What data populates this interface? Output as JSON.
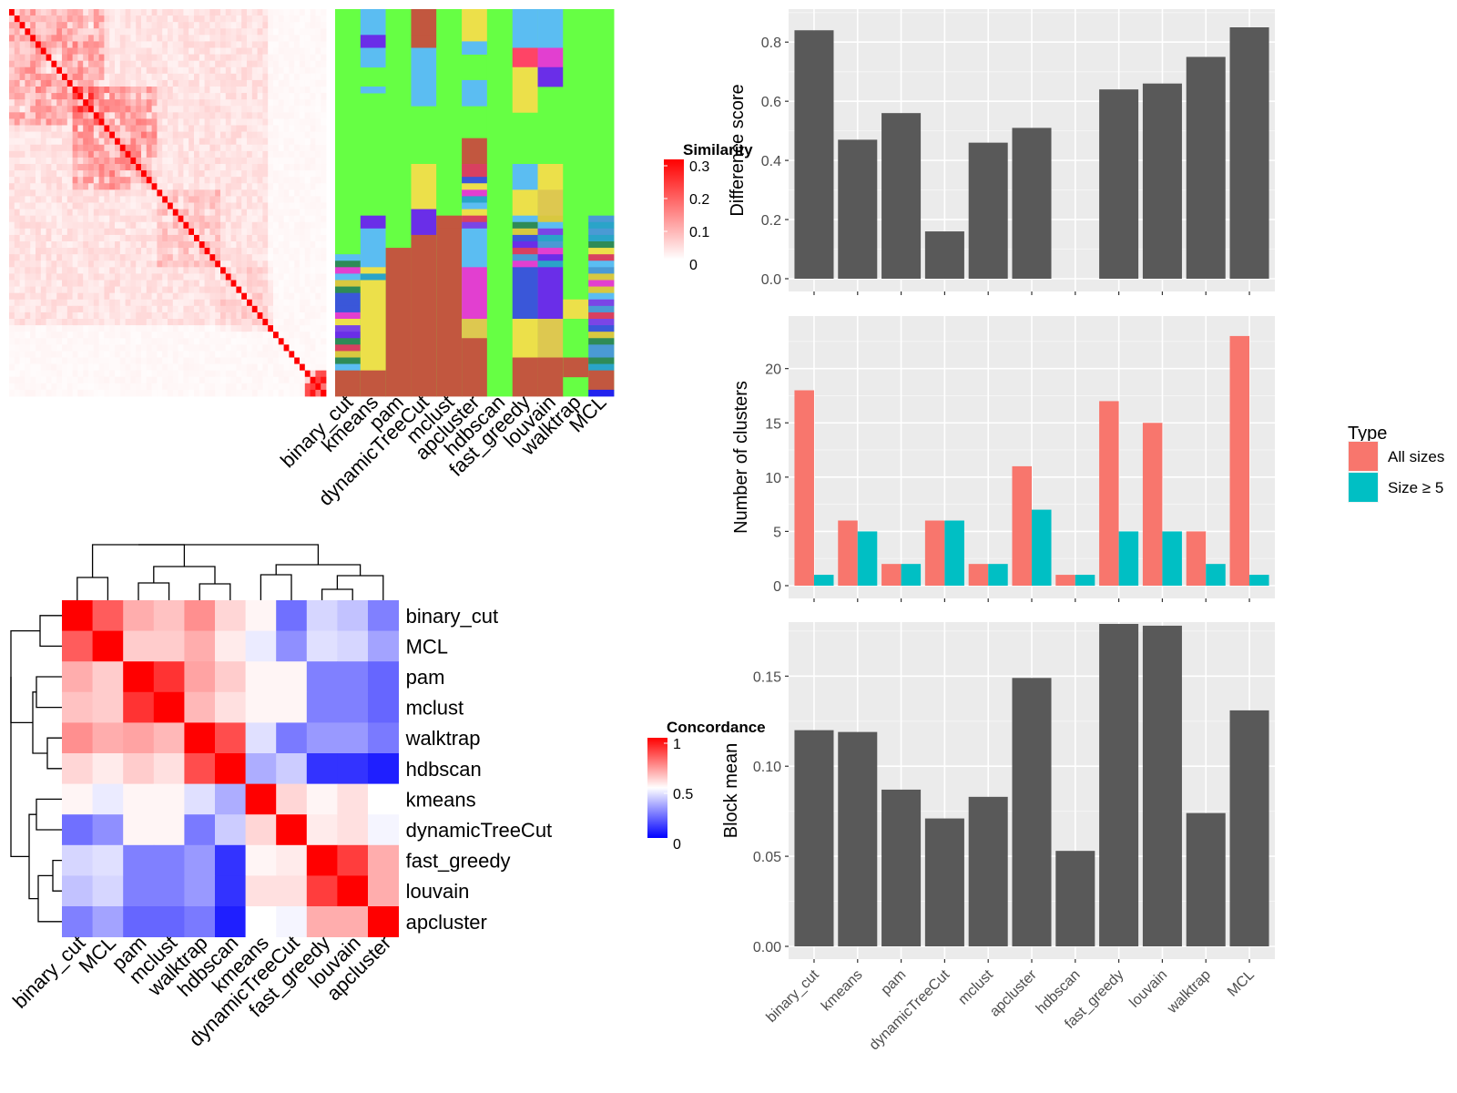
{
  "chart_data": [
    {
      "type": "heatmap",
      "id": "similarity-heatmap",
      "legend_title": "Similarity",
      "legend_ticks": [
        "0.3",
        "0.2",
        "0.1",
        "0"
      ],
      "colors": {
        "low": "#ffffff",
        "high": "#ff0000"
      }
    },
    {
      "type": "heatmap",
      "id": "cluster-membership",
      "columns": [
        "binary_cut",
        "kmeans",
        "pam",
        "dynamicTreeCut",
        "mclust",
        "apcluster",
        "hdbscan",
        "fast_greedy",
        "louvain",
        "walktrap",
        "MCL"
      ]
    },
    {
      "type": "heatmap",
      "id": "concordance-heatmap",
      "legend_title": "Concordance",
      "legend_ticks": [
        "1",
        "0.5",
        "0"
      ],
      "colors": {
        "low": "#0000ff",
        "mid": "#ffffff",
        "high": "#ff0000"
      },
      "rows": [
        "binary_cut",
        "MCL",
        "pam",
        "mclust",
        "walktrap",
        "hdbscan",
        "kmeans",
        "dynamicTreeCut",
        "fast_greedy",
        "louvain",
        "apcluster"
      ],
      "columns": [
        "binary_cut",
        "MCL",
        "pam",
        "mclust",
        "walktrap",
        "hdbscan",
        "kmeans",
        "dynamicTreeCut",
        "fast_greedy",
        "louvain",
        "apcluster"
      ],
      "values": [
        [
          1.0,
          0.82,
          0.66,
          0.62,
          0.72,
          0.58,
          0.52,
          0.22,
          0.42,
          0.38,
          0.25
        ],
        [
          0.82,
          1.0,
          0.6,
          0.6,
          0.66,
          0.54,
          0.46,
          0.28,
          0.44,
          0.42,
          0.32
        ],
        [
          0.66,
          0.6,
          1.0,
          0.9,
          0.68,
          0.6,
          0.52,
          0.52,
          0.25,
          0.25,
          0.2
        ],
        [
          0.62,
          0.6,
          0.9,
          1.0,
          0.64,
          0.56,
          0.52,
          0.52,
          0.25,
          0.25,
          0.2
        ],
        [
          0.72,
          0.66,
          0.68,
          0.64,
          1.0,
          0.85,
          0.44,
          0.24,
          0.3,
          0.3,
          0.24
        ],
        [
          0.58,
          0.54,
          0.6,
          0.56,
          0.85,
          1.0,
          0.34,
          0.4,
          0.1,
          0.1,
          0.06
        ],
        [
          0.52,
          0.46,
          0.52,
          0.52,
          0.44,
          0.34,
          1.0,
          0.58,
          0.52,
          0.56,
          0.5
        ],
        [
          0.22,
          0.28,
          0.52,
          0.52,
          0.24,
          0.4,
          0.58,
          1.0,
          0.54,
          0.56,
          0.48
        ],
        [
          0.42,
          0.44,
          0.25,
          0.25,
          0.3,
          0.1,
          0.52,
          0.54,
          1.0,
          0.88,
          0.66
        ],
        [
          0.38,
          0.42,
          0.25,
          0.25,
          0.3,
          0.1,
          0.56,
          0.56,
          0.88,
          1.0,
          0.66
        ],
        [
          0.25,
          0.32,
          0.2,
          0.2,
          0.24,
          0.06,
          0.5,
          0.48,
          0.66,
          0.66,
          1.0
        ]
      ]
    },
    {
      "type": "bar",
      "id": "difference-score",
      "categories": [
        "binary_cut",
        "kmeans",
        "pam",
        "dynamicTreeCut",
        "mclust",
        "apcluster",
        "hdbscan",
        "fast_greedy",
        "louvain",
        "walktrap",
        "MCL"
      ],
      "values": [
        0.84,
        0.47,
        0.56,
        0.16,
        0.46,
        0.51,
        0.0,
        0.64,
        0.66,
        0.75,
        0.85
      ],
      "xlabel": "",
      "ylabel": "Difference score",
      "ylim": [
        0,
        0.85
      ],
      "yticks": [
        "0.0",
        "0.2",
        "0.4",
        "0.6",
        "0.8"
      ],
      "ytick_values": [
        0,
        0.2,
        0.4,
        0.6,
        0.8
      ],
      "color": "#595959"
    },
    {
      "type": "bar",
      "id": "number-of-clusters",
      "categories": [
        "binary_cut",
        "kmeans",
        "pam",
        "dynamicTreeCut",
        "mclust",
        "apcluster",
        "hdbscan",
        "fast_greedy",
        "louvain",
        "walktrap",
        "MCL"
      ],
      "series": [
        {
          "name": "All sizes",
          "values": [
            18,
            6,
            2,
            6,
            2,
            11,
            1,
            17,
            15,
            5,
            23
          ],
          "color": "#f8766d"
        },
        {
          "name": "Size ≥ 5",
          "values": [
            1,
            5,
            2,
            6,
            2,
            7,
            1,
            5,
            5,
            2,
            1
          ],
          "color": "#00bfc4"
        }
      ],
      "xlabel": "",
      "ylabel": "Number of clusters",
      "legend_title": "Type",
      "legend_position": "right",
      "ylim": [
        0,
        24
      ],
      "yticks": [
        "0",
        "5",
        "10",
        "15",
        "20"
      ],
      "ytick_values": [
        0,
        5,
        10,
        15,
        20
      ]
    },
    {
      "type": "bar",
      "id": "block-mean",
      "categories": [
        "binary_cut",
        "kmeans",
        "pam",
        "dynamicTreeCut",
        "mclust",
        "apcluster",
        "hdbscan",
        "fast_greedy",
        "louvain",
        "walktrap",
        "MCL"
      ],
      "values": [
        0.12,
        0.119,
        0.087,
        0.071,
        0.083,
        0.149,
        0.053,
        0.179,
        0.178,
        0.074,
        0.131
      ],
      "xlabel": "",
      "ylabel": "Block mean",
      "ylim": [
        0,
        0.18
      ],
      "yticks": [
        "0.00",
        "0.05",
        "0.10",
        "0.15"
      ],
      "ytick_values": [
        0,
        0.05,
        0.1,
        0.15
      ],
      "color": "#595959"
    }
  ]
}
